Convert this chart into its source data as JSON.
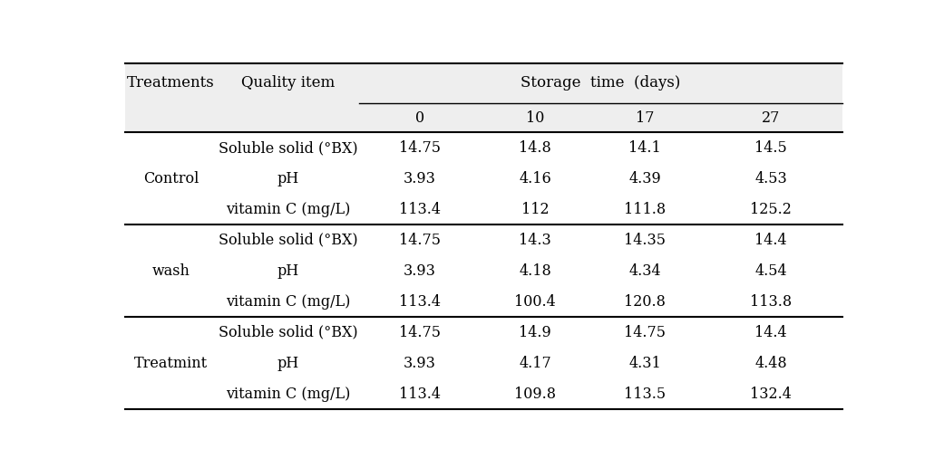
{
  "treatments": [
    "Control",
    "wash",
    "Treatmint"
  ],
  "quality_items": [
    "Soluble solid (°BX)",
    "pH",
    "vitamin C (mg/L)"
  ],
  "storage_days": [
    "0",
    "10",
    "17",
    "27"
  ],
  "data": {
    "Control": {
      "Soluble solid": [
        "14.75",
        "14.8",
        "14.1",
        "14.5"
      ],
      "pH": [
        "3.93",
        "4.16",
        "4.39",
        "4.53"
      ],
      "vitamin C": [
        "113.4",
        "112",
        "111.8",
        "125.2"
      ]
    },
    "wash": {
      "Soluble solid": [
        "14.75",
        "14.3",
        "14.35",
        "14.4"
      ],
      "pH": [
        "3.93",
        "4.18",
        "4.34",
        "4.54"
      ],
      "vitamin C": [
        "113.4",
        "100.4",
        "120.8",
        "113.8"
      ]
    },
    "Treatmint": {
      "Soluble solid": [
        "14.75",
        "14.9",
        "14.75",
        "14.4"
      ],
      "pH": [
        "3.93",
        "4.17",
        "4.31",
        "4.48"
      ],
      "vitamin C": [
        "113.4",
        "109.8",
        "113.5",
        "132.4"
      ]
    }
  },
  "bg_color": "#eeeeee",
  "font_size": 11.5,
  "header_font_size": 12
}
